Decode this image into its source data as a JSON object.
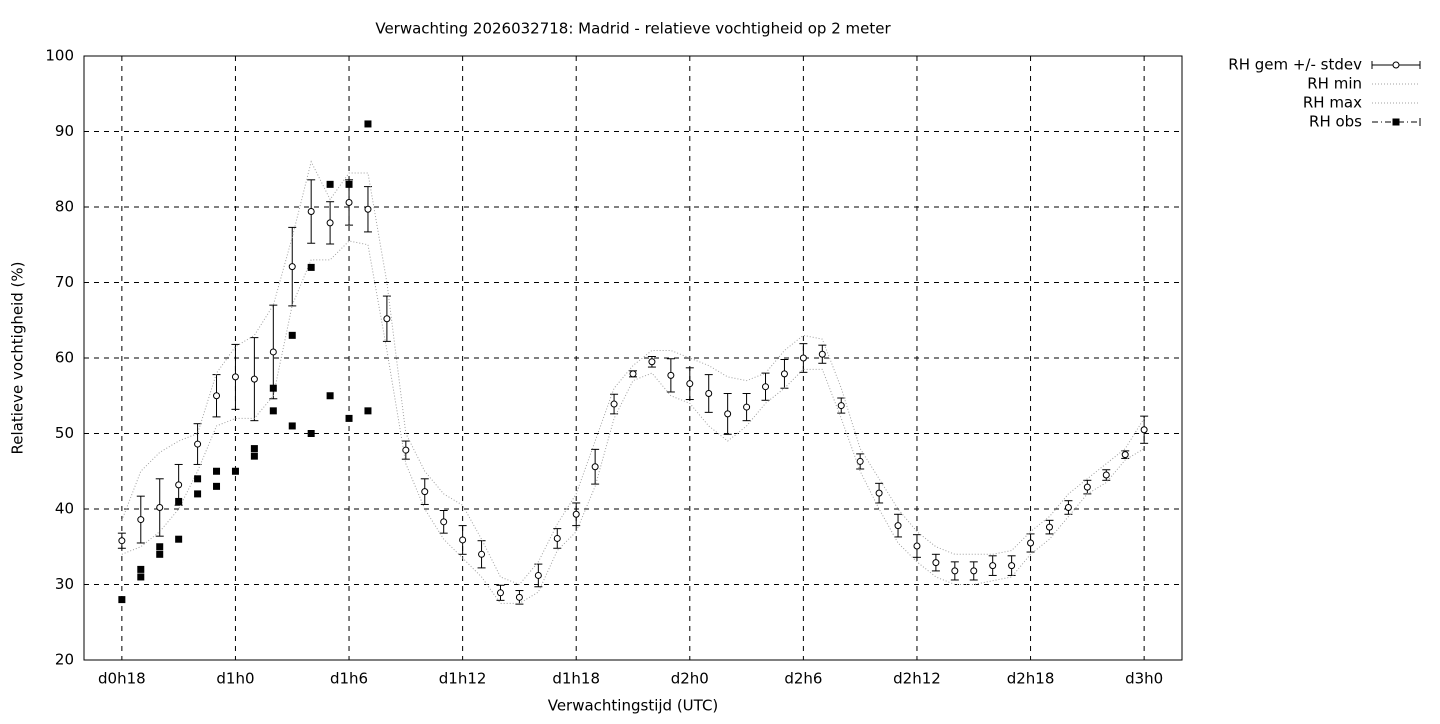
{
  "chart_data": {
    "type": "line",
    "title": "Verwachting 2026032718: Madrid - relatieve vochtigheid op 2 meter",
    "x_label": "Verwachtingstijd (UTC)",
    "y_label": "Relatieve vochtigheid (%)",
    "xlim": [
      16,
      74
    ],
    "xticks": [
      {
        "value": 18,
        "label": "d0h18"
      },
      {
        "value": 24,
        "label": "d1h0"
      },
      {
        "value": 30,
        "label": "d1h6"
      },
      {
        "value": 36,
        "label": "d1h12"
      },
      {
        "value": 42,
        "label": "d1h18"
      },
      {
        "value": 48,
        "label": "d2h0"
      },
      {
        "value": 54,
        "label": "d2h6"
      },
      {
        "value": 60,
        "label": "d2h12"
      },
      {
        "value": 66,
        "label": "d2h18"
      },
      {
        "value": 72,
        "label": "d3h0"
      }
    ],
    "ylim": [
      20,
      100
    ],
    "yticks": [
      20,
      30,
      40,
      50,
      60,
      70,
      80,
      90,
      100
    ],
    "grid": true,
    "legend": "top-right-outside",
    "x": [
      18,
      19,
      20,
      21,
      22,
      23,
      24,
      25,
      26,
      27,
      28,
      29,
      30,
      31,
      32,
      33,
      34,
      35,
      36,
      37,
      38,
      39,
      40,
      41,
      42,
      43,
      44,
      45,
      46,
      47,
      48,
      49,
      50,
      51,
      52,
      53,
      54,
      55,
      56,
      57,
      58,
      59,
      60,
      61,
      62,
      63,
      64,
      65,
      66,
      67,
      68,
      69,
      70,
      71,
      72
    ],
    "series": [
      {
        "name": "RH gem +/- stdev",
        "color": "#000000",
        "style": "errorbars",
        "values": [
          35.8,
          38.6,
          40.2,
          43.2,
          48.6,
          55.0,
          57.5,
          57.2,
          60.8,
          72.1,
          79.4,
          77.9,
          80.6,
          79.7,
          65.2,
          47.8,
          42.3,
          38.3,
          35.9,
          34.0,
          28.9,
          28.3,
          31.2,
          36.1,
          39.3,
          45.6,
          53.9,
          57.9,
          59.5,
          57.7,
          56.6,
          55.3,
          52.6,
          53.5,
          56.2,
          57.9,
          60.0,
          60.5,
          53.7,
          46.3,
          42.1,
          37.8,
          35.1,
          32.9,
          31.8,
          31.8,
          32.5,
          32.5,
          35.5,
          37.6,
          40.2,
          42.9,
          44.5,
          47.2,
          50.5
        ],
        "errors": [
          1.0,
          3.1,
          3.8,
          2.7,
          2.7,
          2.8,
          4.3,
          5.5,
          6.2,
          5.2,
          4.2,
          2.8,
          3.0,
          3.0,
          3.0,
          1.2,
          1.7,
          1.5,
          1.9,
          1.8,
          1.0,
          0.9,
          1.5,
          1.3,
          1.5,
          2.3,
          1.3,
          0.4,
          0.7,
          2.2,
          2.1,
          2.5,
          2.7,
          1.8,
          1.8,
          1.9,
          1.9,
          1.2,
          1.0,
          1.0,
          1.3,
          1.5,
          1.5,
          1.1,
          1.2,
          1.2,
          1.3,
          1.3,
          1.2,
          0.9,
          0.9,
          0.9,
          0.7,
          0.5,
          1.8
        ]
      },
      {
        "name": "RH min",
        "color": "#a0a0a0",
        "style": "dotted",
        "values": [
          34,
          35,
          37,
          40,
          45,
          51,
          52,
          52,
          55,
          67,
          73,
          73,
          75.5,
          75,
          61,
          46,
          40,
          36,
          33.5,
          31,
          27.5,
          27.5,
          29,
          34.5,
          37,
          43,
          52,
          57,
          58,
          55,
          54,
          51,
          49,
          51,
          54,
          56,
          58.5,
          58.5,
          52,
          45,
          40,
          35.5,
          33,
          31,
          30,
          30,
          30.5,
          31,
          34,
          36,
          39,
          42,
          43.5,
          46.5,
          48
        ]
      },
      {
        "name": "RH max",
        "color": "#a0a0a0",
        "style": "dotted",
        "values": [
          38.5,
          45,
          47.5,
          49,
          50,
          58,
          61.5,
          63,
          67,
          76,
          86,
          81,
          84.5,
          84.5,
          70,
          50,
          45,
          42,
          40.5,
          36,
          31,
          30,
          33,
          38,
          42,
          49,
          56,
          59,
          61,
          61,
          60,
          59,
          57.5,
          57,
          58,
          61,
          63,
          62.5,
          56,
          48,
          44,
          40,
          37,
          35,
          34,
          34,
          34,
          34.5,
          37,
          39,
          42,
          44,
          46,
          48,
          52
        ]
      },
      {
        "name": "RH obs",
        "color": "#000000",
        "style": "points",
        "x": [
          18,
          19,
          19,
          20,
          20,
          21,
          21,
          22,
          22,
          23,
          23,
          24,
          25,
          25,
          26,
          26,
          27,
          27,
          28,
          28,
          29,
          29,
          30,
          30,
          31,
          31
        ],
        "values": [
          28,
          31,
          32,
          34,
          35,
          36,
          41,
          42,
          44,
          43,
          45,
          45,
          47,
          48,
          53,
          56,
          51,
          63,
          50,
          72,
          55,
          83,
          52,
          83,
          53,
          91
        ]
      }
    ]
  }
}
